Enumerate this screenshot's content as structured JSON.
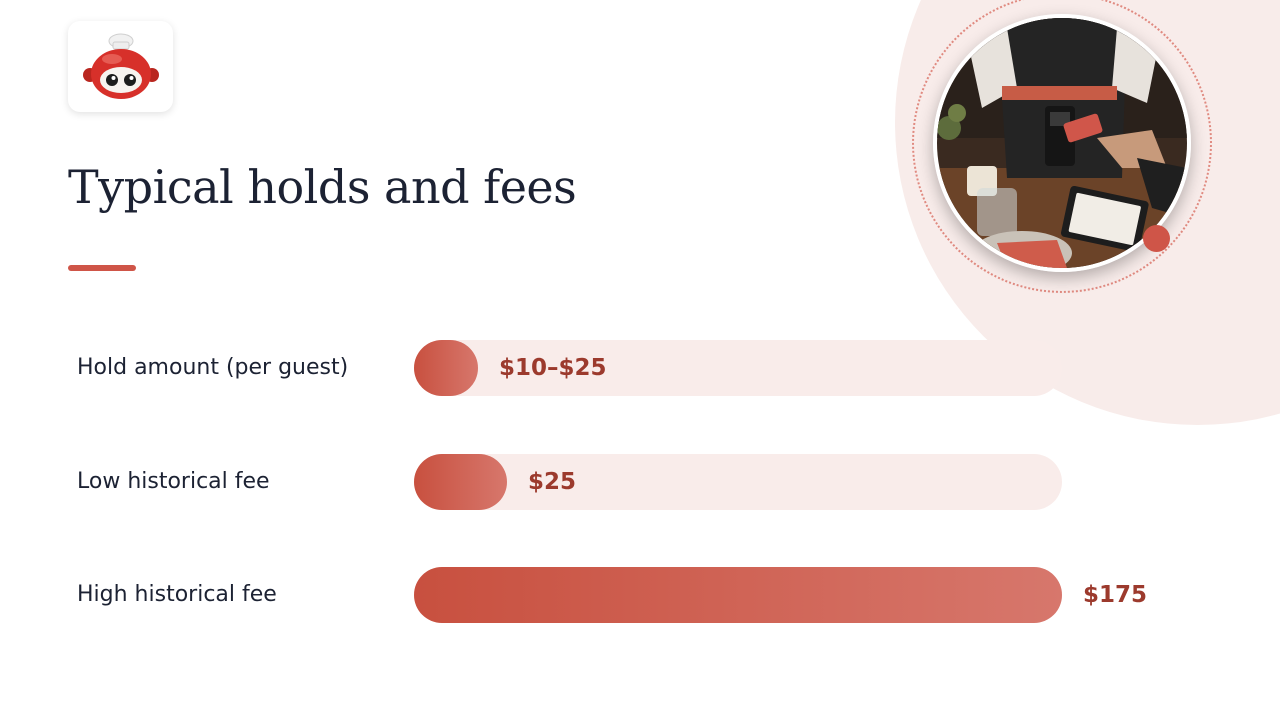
{
  "slide": {
    "title": "Typical holds and fees",
    "logo_icon": "chef-robot-icon",
    "photo_icon": "card-payment-photo",
    "colors": {
      "accent": "#cf5548",
      "value_text": "#9c3a2d",
      "track": "#f9ecea",
      "title_text": "#1c2233",
      "background_blob": "#f8ecea"
    }
  },
  "chart_data": {
    "type": "bar",
    "orientation": "horizontal",
    "categories": [
      "Hold amount (per guest)",
      "Low historical fee",
      "High historical fee"
    ],
    "values": [
      10,
      25,
      175
    ],
    "value_labels": [
      "$10–$25",
      "$25",
      "$175"
    ],
    "xlim": [
      0,
      175
    ],
    "grid": false
  }
}
